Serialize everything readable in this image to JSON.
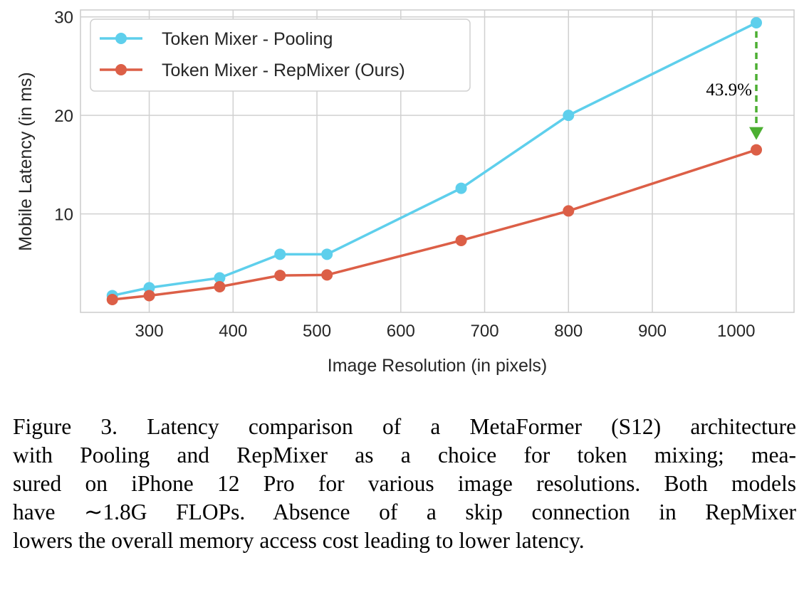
{
  "chart_data": {
    "type": "line",
    "title": "",
    "xlabel": "Image Resolution (in pixels)",
    "ylabel": "Mobile Latency (in ms)",
    "xlim": [
      218,
      1069
    ],
    "ylim": [
      0,
      30.7
    ],
    "xticks": [
      300,
      400,
      500,
      600,
      700,
      800,
      900,
      1000
    ],
    "yticks": [
      10,
      20,
      30
    ],
    "grid": true,
    "legend_position": "top-left",
    "x": [
      256,
      300,
      384,
      456,
      512,
      672,
      800,
      1024
    ],
    "series": [
      {
        "name": "Token Mixer - Pooling",
        "color": "#5ecfec",
        "values": [
          1.7,
          2.5,
          3.5,
          5.9,
          5.9,
          12.6,
          20.0,
          29.4
        ]
      },
      {
        "name": "Token Mixer - RepMixer (Ours)",
        "color": "#dc5f47",
        "values": [
          1.3,
          1.7,
          2.6,
          3.75,
          3.8,
          7.3,
          10.3,
          16.5
        ]
      }
    ],
    "annotation": {
      "text": "43.9%",
      "x": 1024,
      "from": 29.4,
      "to": 16.5,
      "color": "#4caf32"
    }
  },
  "caption": {
    "lines": [
      "Figure 3. Latency comparison of a MetaFormer (S12) architecture",
      "with Pooling and RepMixer as a choice for token mixing; mea-",
      "sured on iPhone 12 Pro for various image resolutions. Both models",
      "have ∼1.8G FLOPs.  Absence of a skip connection in RepMixer",
      "lowers the overall memory access cost leading to lower latency."
    ]
  }
}
